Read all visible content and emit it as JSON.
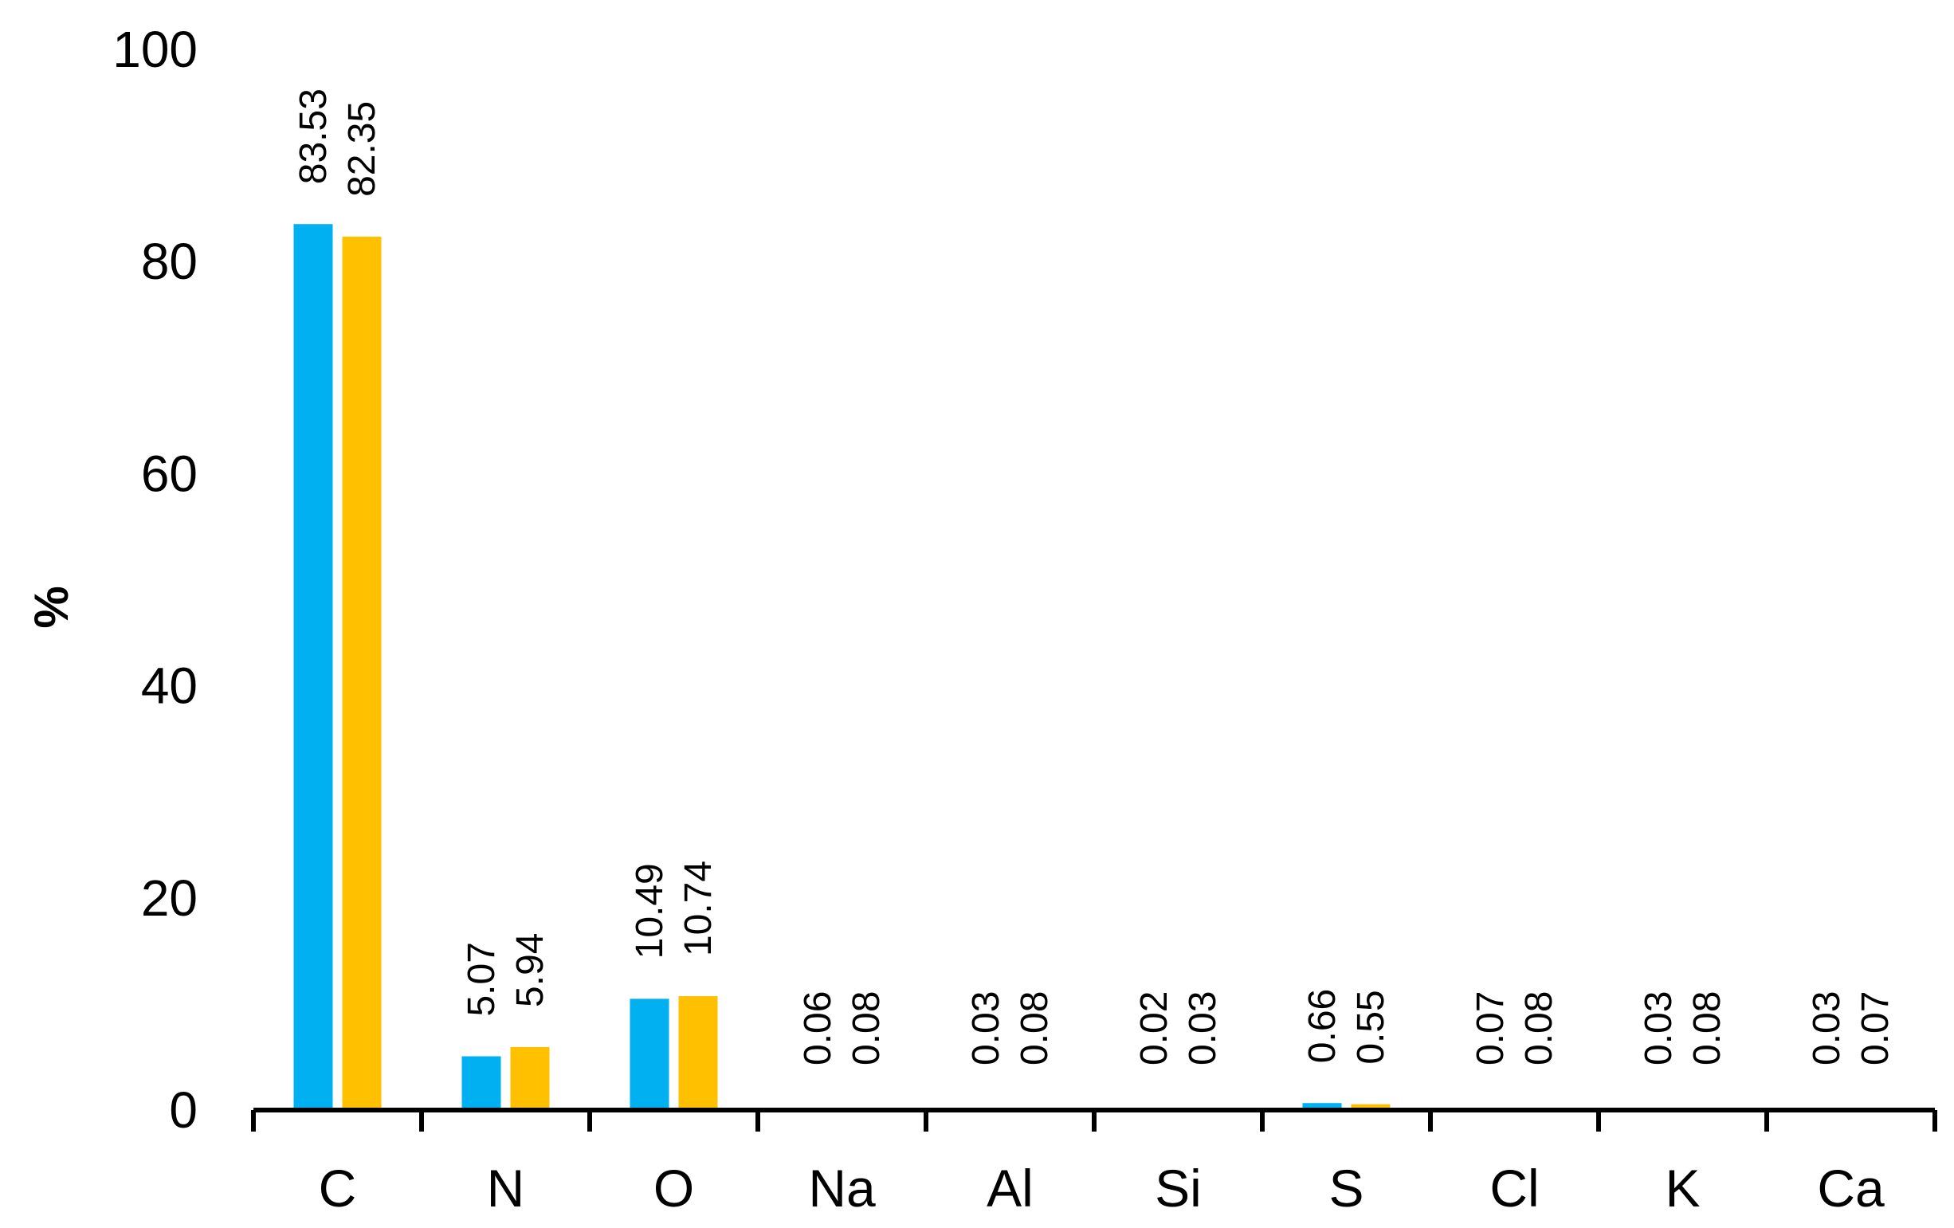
{
  "chart_data": {
    "type": "bar",
    "title": "",
    "xlabel": "",
    "ylabel": "%",
    "ylim": [
      0,
      100
    ],
    "yticks": [
      "0",
      "20",
      "40",
      "60",
      "80",
      "100"
    ],
    "grid": false,
    "categories": [
      "C",
      "N",
      "O",
      "Na",
      "Al",
      "Si",
      "S",
      "Cl",
      "K",
      "Ca"
    ],
    "series": [
      {
        "color": "#00b0f0",
        "values": [
          83.53,
          5.07,
          10.49,
          0.06,
          0.03,
          0.02,
          0.66,
          0.07,
          0.03,
          0.03
        ],
        "labels": [
          "83.53",
          "5.07",
          "10.49",
          "0.06",
          "0.03",
          "0.02",
          "0.66",
          "0.07",
          "0.03",
          "0.03"
        ]
      },
      {
        "color": "#ffc000",
        "values": [
          82.35,
          5.94,
          10.74,
          0.08,
          0.08,
          0.03,
          0.55,
          0.08,
          0.08,
          0.07
        ],
        "labels": [
          "82.35",
          "5.94",
          "10.74",
          "0.08",
          "0.08",
          "0.03",
          "0.55",
          "0.08",
          "0.08",
          "0.07"
        ]
      }
    ]
  }
}
